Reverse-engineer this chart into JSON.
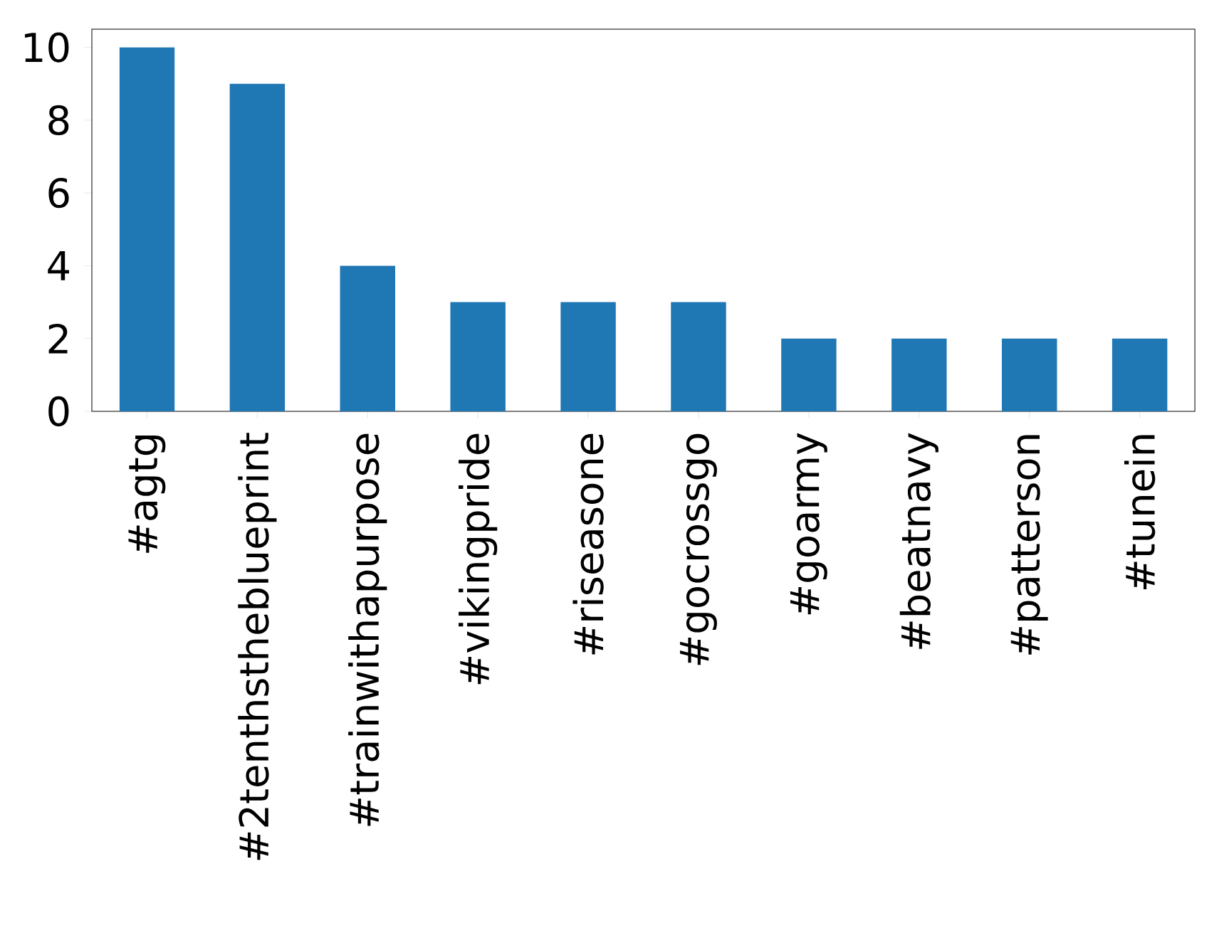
{
  "chart_data": {
    "type": "bar",
    "categories": [
      "#agtg",
      "#2tenthstheblueprint",
      "#trainwithapurpose",
      "#vikingpride",
      "#riseasone",
      "#gocrossgo",
      "#goarmy",
      "#beatnavy",
      "#patterson",
      "#tunein"
    ],
    "values": [
      10,
      9,
      4,
      3,
      3,
      3,
      2,
      2,
      2,
      2
    ],
    "color": "#1f77b4",
    "ylim": [
      0,
      10.5
    ],
    "yticks": [
      0,
      2,
      4,
      6,
      8,
      10
    ]
  }
}
